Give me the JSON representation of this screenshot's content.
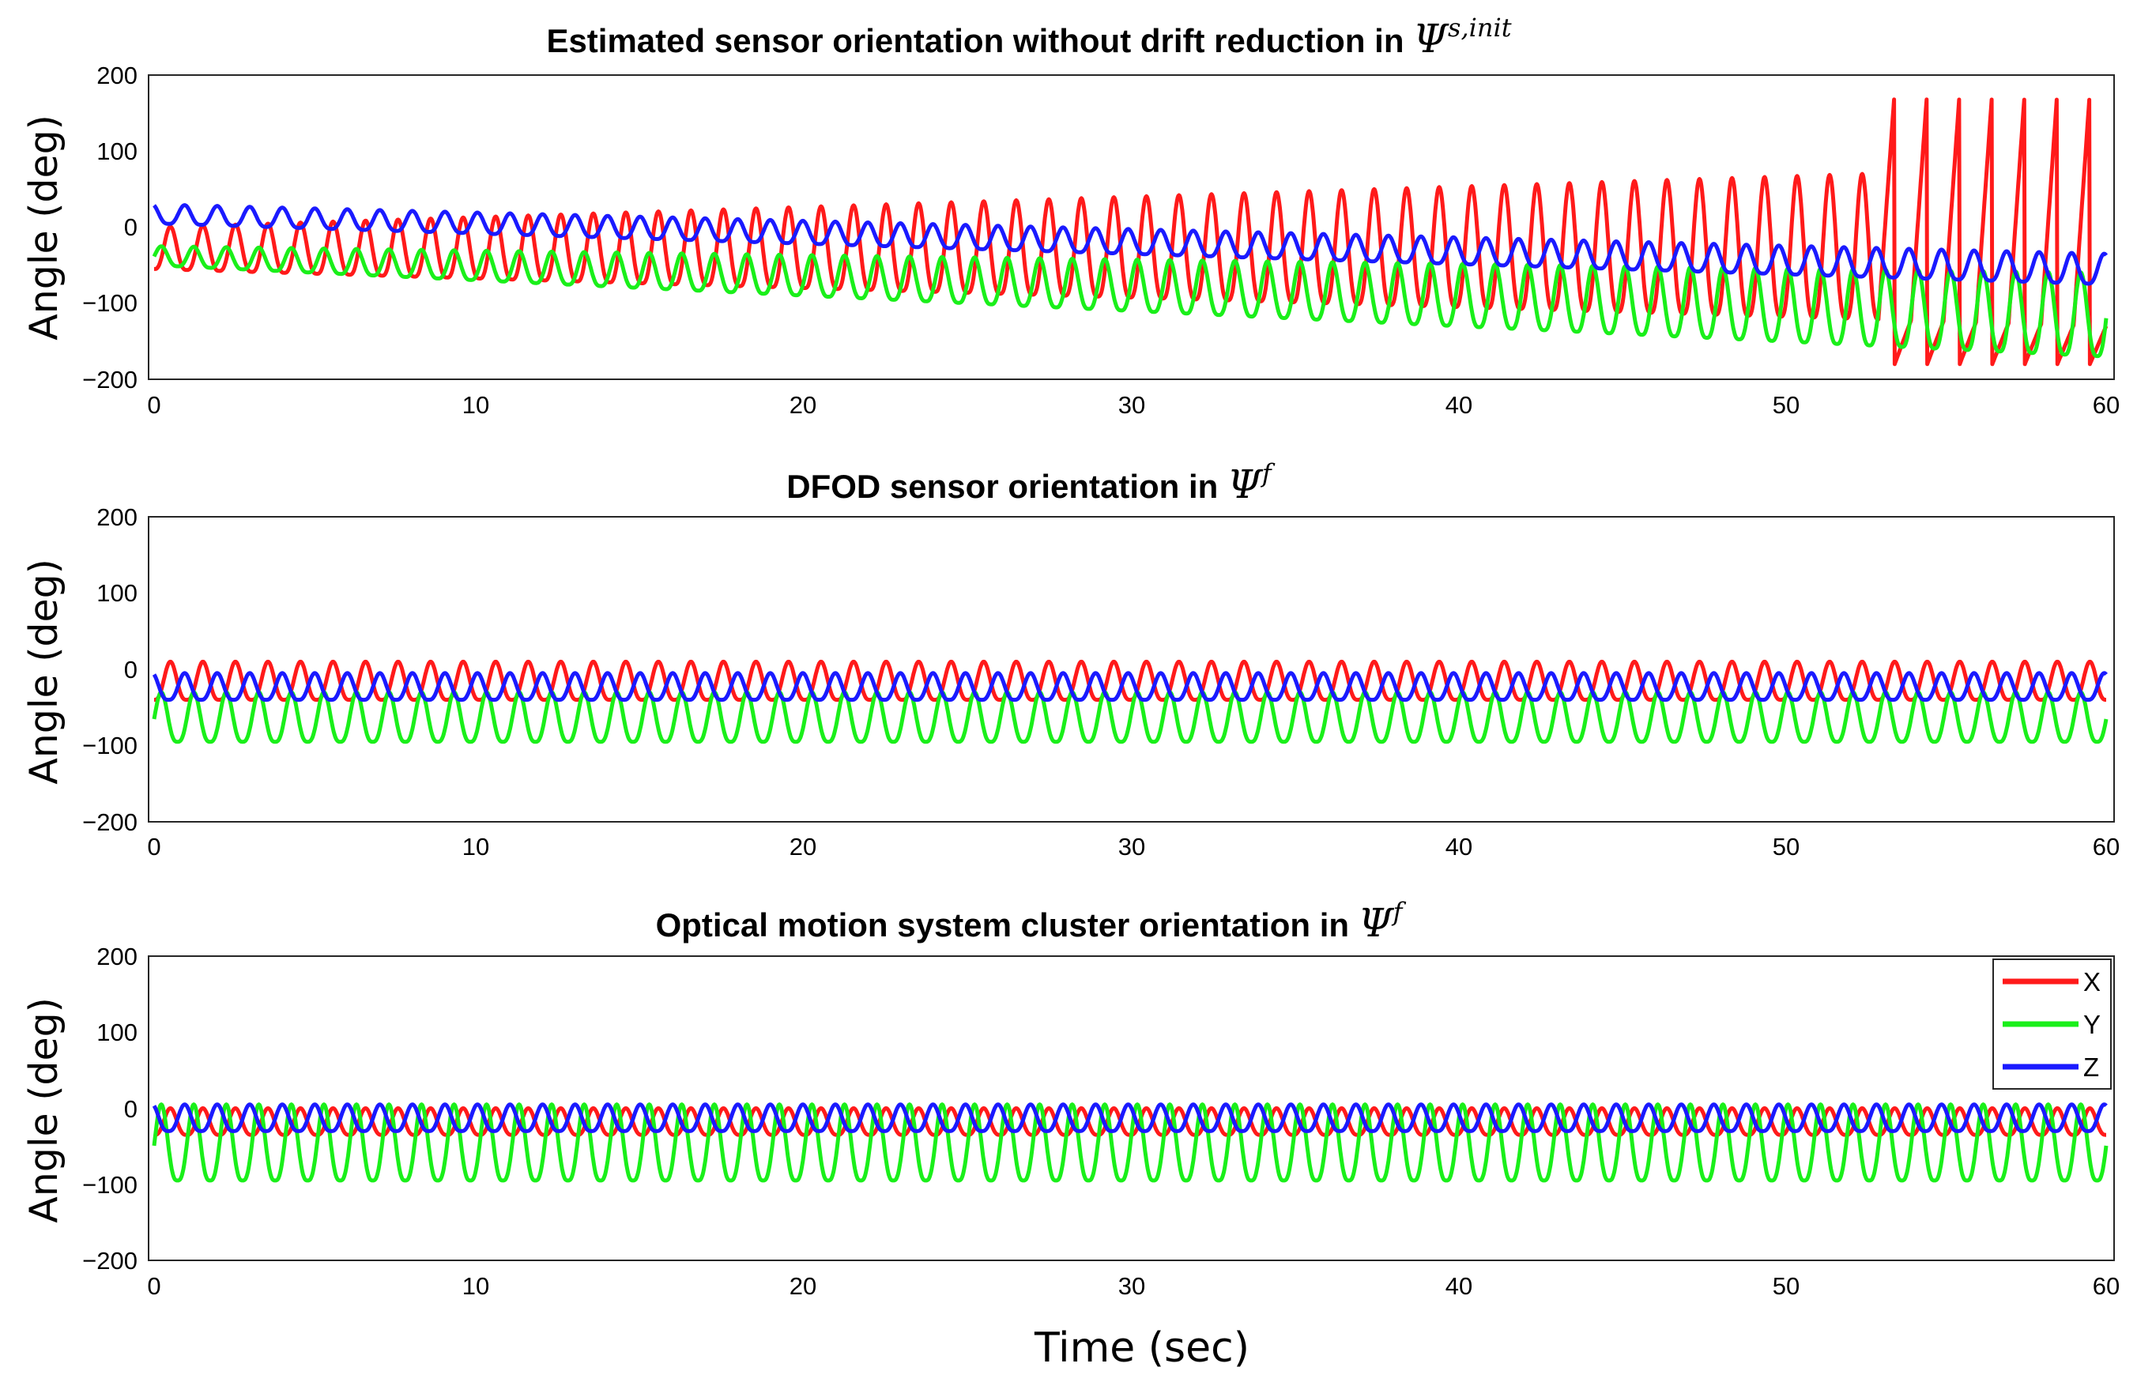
{
  "figure": {
    "xlabel": "Time (sec)",
    "legend": [
      {
        "label": "X",
        "color": "#ff1a1a"
      },
      {
        "label": "Y",
        "color": "#1aef1a"
      },
      {
        "label": "Z",
        "color": "#1a1aff"
      }
    ]
  },
  "chart_data": [
    {
      "type": "line",
      "title": "Estimated sensor orientation without drift reduction in",
      "title_symbol": "Ψ",
      "title_superscript": "s,init",
      "ylabel": "Angle (deg)",
      "xlim": [
        0,
        60
      ],
      "ylim": [
        -200,
        200
      ],
      "xticks": [
        "0",
        "10",
        "20",
        "30",
        "40",
        "50",
        "60"
      ],
      "yticks": [
        "200",
        "100",
        "0",
        "−100",
        "−200"
      ],
      "cycles": 60,
      "series": [
        {
          "name": "X",
          "color": "#ff1a1a",
          "baseline_start": -55,
          "baseline_end": -130,
          "peak_start": 0,
          "peak_end": 80,
          "wrap_after_sec": 53
        },
        {
          "name": "Y",
          "color": "#1aef1a",
          "baseline_start": -50,
          "baseline_end": -170,
          "peak_start": -25,
          "peak_end": -60
        },
        {
          "name": "Z",
          "color": "#1a1aff",
          "baseline_start": 5,
          "baseline_end": -75,
          "peak_start": 30,
          "peak_end": -35
        }
      ]
    },
    {
      "type": "line",
      "title": "DFOD sensor orientation in",
      "title_symbol": "Ψ",
      "title_superscript": "f",
      "ylabel": "Angle (deg)",
      "xlim": [
        0,
        60
      ],
      "ylim": [
        -200,
        200
      ],
      "xticks": [
        "0",
        "10",
        "20",
        "30",
        "40",
        "50",
        "60"
      ],
      "yticks": [
        "200",
        "100",
        "0",
        "−100",
        "−200"
      ],
      "cycles": 60,
      "series": [
        {
          "name": "X",
          "color": "#ff1a1a",
          "baseline": -40,
          "peak": 10
        },
        {
          "name": "Y",
          "color": "#1aef1a",
          "baseline": -95,
          "peak": -30
        },
        {
          "name": "Z",
          "color": "#1a1aff",
          "baseline": -40,
          "peak": -5
        }
      ]
    },
    {
      "type": "line",
      "title": "Optical motion system cluster orientation in",
      "title_symbol": "Ψ",
      "title_superscript": "f",
      "ylabel": "Angle (deg)",
      "xlim": [
        0,
        60
      ],
      "ylim": [
        -200,
        200
      ],
      "xticks": [
        "0",
        "10",
        "20",
        "30",
        "40",
        "50",
        "60"
      ],
      "yticks": [
        "200",
        "100",
        "0",
        "−100",
        "−200"
      ],
      "cycles": 60,
      "legend_position": "top-right",
      "series": [
        {
          "name": "X",
          "color": "#ff1a1a",
          "baseline": -35,
          "peak": 0
        },
        {
          "name": "Y",
          "color": "#1aef1a",
          "baseline": -95,
          "peak": 5
        },
        {
          "name": "Z",
          "color": "#1a1aff",
          "baseline": -30,
          "peak": 5
        }
      ]
    }
  ]
}
